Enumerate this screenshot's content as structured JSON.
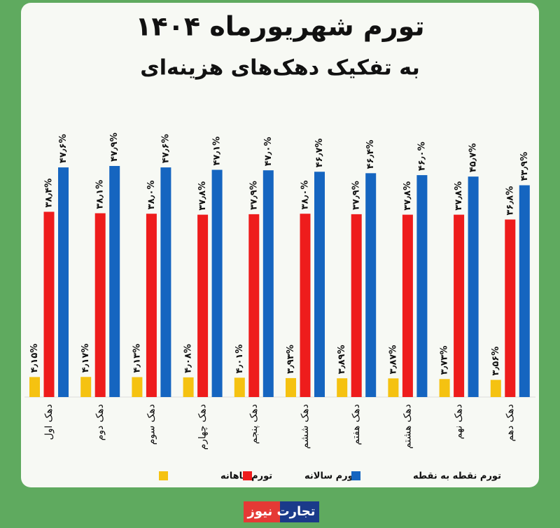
{
  "chart_data": {
    "type": "bar",
    "title": "تورم شهریورماه ۱۴۰۴",
    "subtitle": "به تفکیک دهک‌های هزینه‌ای",
    "categories": [
      "دهک اول",
      "دهک دوم",
      "دهک سوم",
      "دهک چهارم",
      "دهک پنجم",
      "دهک ششم",
      "دهک هفتم",
      "دهک هشتم",
      "دهک نهم",
      "دهک دهم"
    ],
    "series": [
      {
        "name": "تورم ماهانه",
        "color": "#f5c211",
        "values": [
          4.15,
          4.17,
          4.13,
          4.08,
          4.01,
          3.93,
          3.89,
          3.87,
          3.73,
          3.56
        ],
        "value_labels": [
          "۴٫۱۵%",
          "۴٫۱۷%",
          "۴٫۱۳%",
          "۴٫۰۸%",
          "۴٫۰۱%",
          "۳٫۹۳%",
          "۳٫۸۹%",
          "۳٫۸۷%",
          "۳٫۷۳%",
          "۳٫۵۶%"
        ]
      },
      {
        "name": "تورم سالانه",
        "color": "#ee1c1c",
        "values": [
          38.4,
          38.1,
          38.0,
          37.8,
          37.9,
          38.0,
          37.9,
          37.8,
          37.8,
          36.8
        ],
        "value_labels": [
          "۳۸٫۴%",
          "۳۸٫۱%",
          "۳۸٫۰%",
          "۳۷٫۸%",
          "۳۷٫۹%",
          "۳۸٫۰%",
          "۳۷٫۹%",
          "۳۷٫۸%",
          "۳۷٫۸%",
          "۳۶٫۸%"
        ]
      },
      {
        "name": "تورم نقطه به نقطه",
        "color": "#1565c0",
        "values": [
          47.6,
          47.9,
          47.6,
          47.1,
          47.0,
          46.7,
          46.4,
          46.0,
          45.7,
          43.9
        ],
        "value_labels": [
          "۴۷٫۶%",
          "۴۷٫۹%",
          "۴۷٫۶%",
          "۴۷٫۱%",
          "۴۷٫۰%",
          "۴۶٫۷%",
          "۴۶٫۴%",
          "۴۶٫۰%",
          "۴۵٫۷%",
          "۴۳٫۹%"
        ]
      }
    ],
    "logo": "تجارت نیوز"
  }
}
